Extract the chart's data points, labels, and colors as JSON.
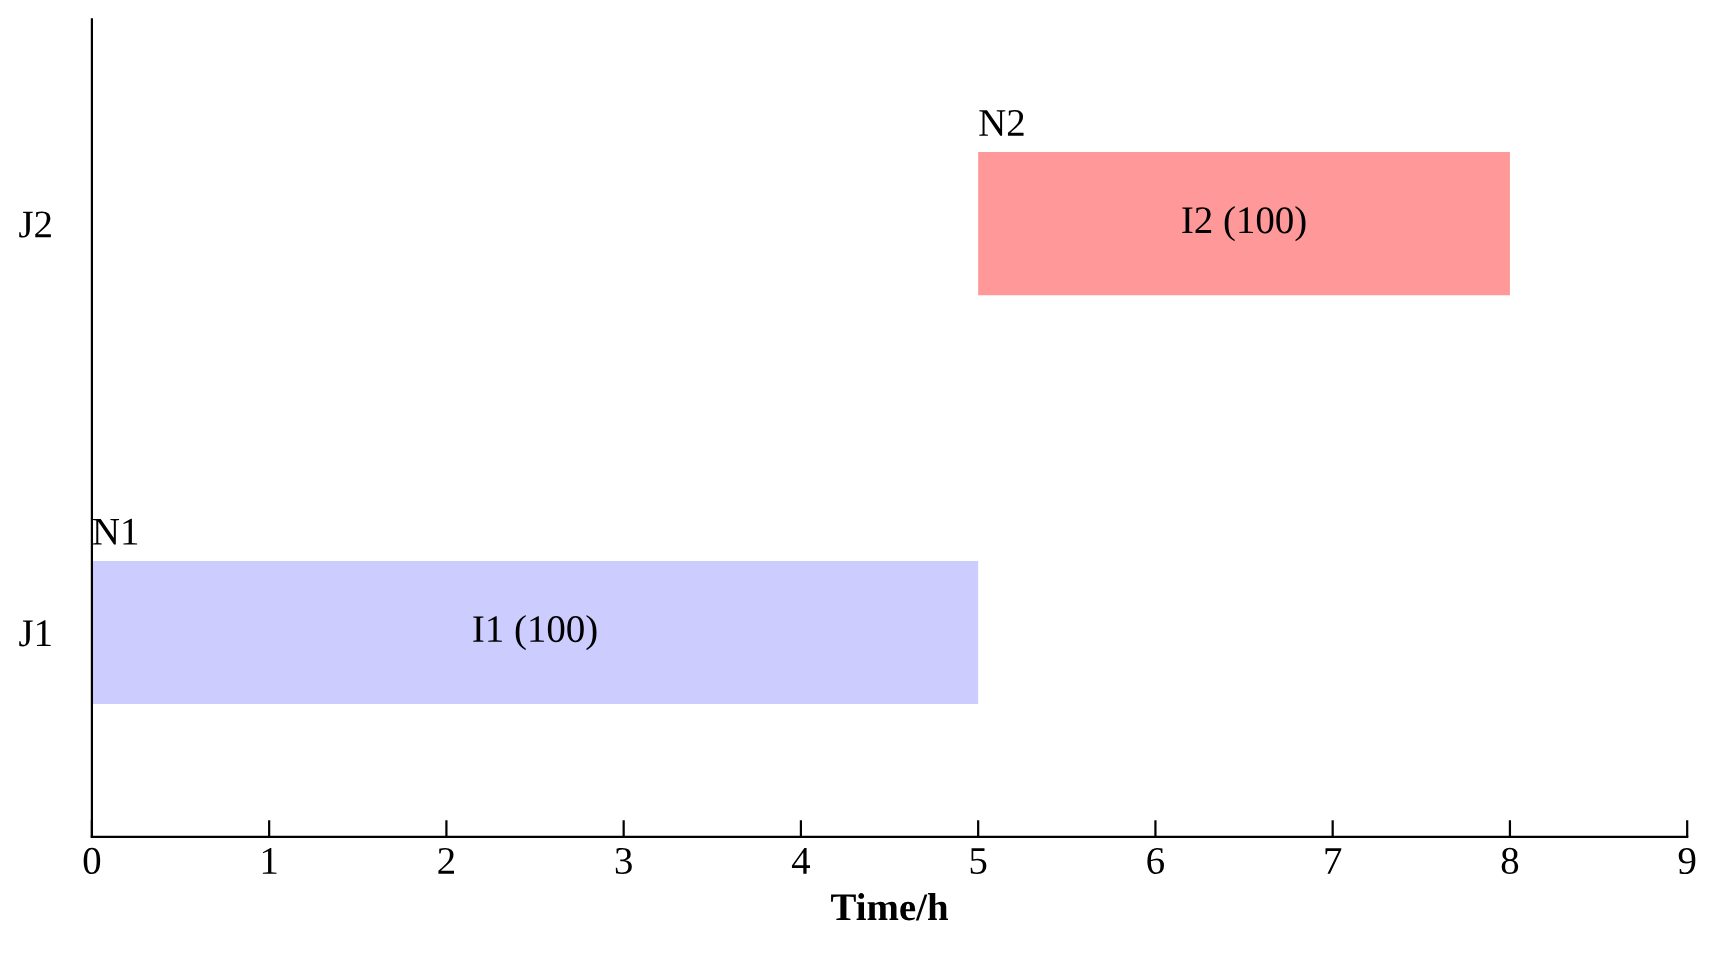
{
  "chart_data": {
    "type": "bar",
    "orientation": "horizontal",
    "categories": [
      "J2",
      "J1"
    ],
    "base": [
      5,
      0
    ],
    "values": [
      3,
      5
    ],
    "colors": [
      "#ff9999",
      "#ccccff"
    ],
    "value_labels": [
      "I2 (100)",
      "I1 (100)"
    ],
    "annotations": [
      {
        "text": "N2",
        "x": 5,
        "y": "J2"
      },
      {
        "text": "N1",
        "x": 0,
        "y": "J1"
      }
    ],
    "xlabel": "Time/h",
    "xlim": [
      0,
      9
    ],
    "xticks": [
      0,
      1,
      2,
      3,
      4,
      5,
      6,
      7,
      8,
      9
    ],
    "grid": false,
    "legend": false
  }
}
